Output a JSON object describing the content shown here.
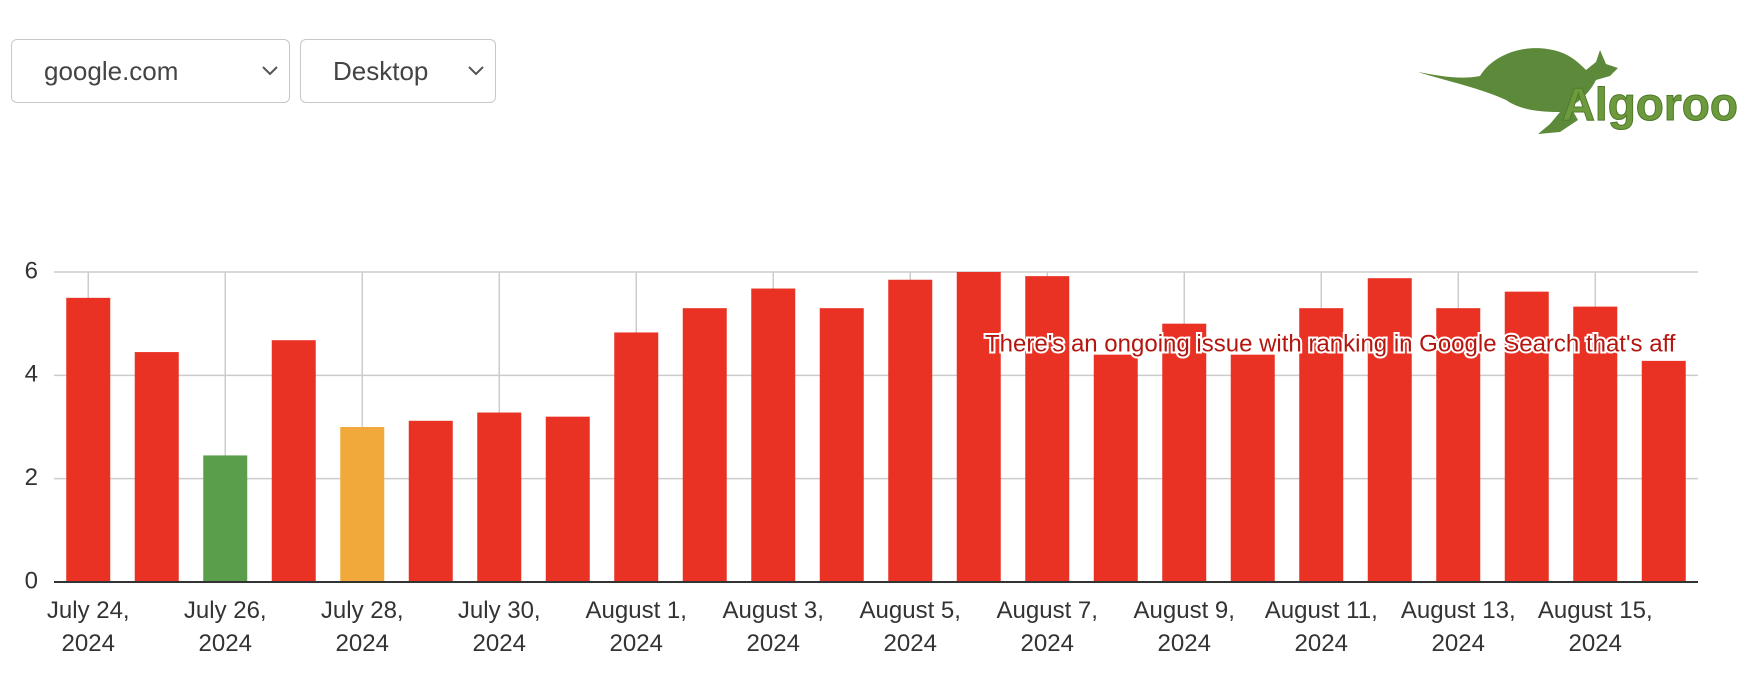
{
  "controls": {
    "site": "google.com",
    "device": "Desktop"
  },
  "logo": {
    "text": "Algoroo"
  },
  "chart_data": {
    "type": "bar",
    "categories": [
      "July 24, 2024",
      null,
      "July 26, 2024",
      null,
      "July 28, 2024",
      null,
      "July 30, 2024",
      null,
      "August 1, 2024",
      null,
      "August 3, 2024",
      null,
      "August 5, 2024",
      null,
      "August 7, 2024",
      null,
      "August 9, 2024",
      null,
      "August 11, 2024",
      null,
      "August 13, 2024",
      null,
      "August 15, 2024",
      null
    ],
    "values": [
      5.5,
      4.45,
      2.45,
      4.68,
      3.0,
      3.12,
      3.28,
      3.2,
      4.83,
      5.3,
      5.68,
      5.3,
      5.85,
      6.0,
      5.92,
      4.4,
      5.0,
      4.4,
      5.3,
      5.88,
      5.3,
      5.62,
      5.33,
      4.28
    ],
    "colors": [
      "#e93224",
      "#e93224",
      "#5a9e4b",
      "#e93224",
      "#f2a93b",
      "#e93224",
      "#e93224",
      "#e93224",
      "#e93224",
      "#e93224",
      "#e93224",
      "#e93224",
      "#e93224",
      "#e93224",
      "#e93224",
      "#e93224",
      "#e93224",
      "#e93224",
      "#e93224",
      "#e93224",
      "#e93224",
      "#e93224",
      "#e93224",
      "#e93224"
    ],
    "ylim": [
      0,
      6
    ],
    "yticks": [
      0,
      2,
      4,
      6
    ],
    "grid": true,
    "annotation": "There's an ongoing issue with ranking in Google Search that's aff"
  }
}
